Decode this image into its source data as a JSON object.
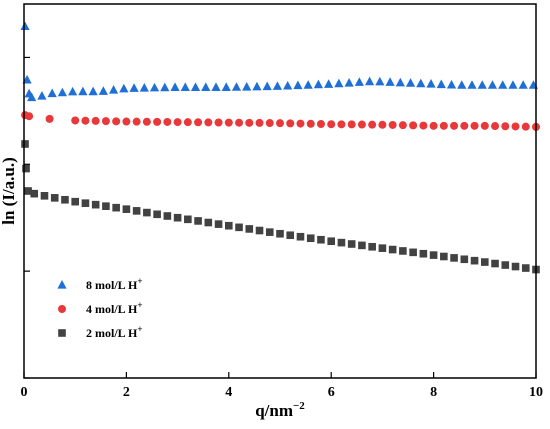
{
  "chart_data": {
    "type": "scatter",
    "title": "",
    "xlabel": "q/nm",
    "xlabel_sup": "−2",
    "ylabel": "ln (I/a.u.)",
    "xlim": [
      0,
      10
    ],
    "ylim": [
      0,
      7
    ],
    "xticks": [
      0,
      2,
      4,
      6,
      8,
      10
    ],
    "yticks": [
      0,
      2,
      4,
      6
    ],
    "show_y_tick_labels": false,
    "grid": false,
    "legend_position": "lower-left",
    "series": [
      {
        "name": "8 mol/L H",
        "name_sup": "+",
        "color": "#1f6fd6",
        "marker": "triangle",
        "points": [
          [
            0.02,
            6.58
          ],
          [
            0.06,
            5.58
          ],
          [
            0.1,
            5.32
          ],
          [
            0.15,
            5.25
          ],
          [
            0.25,
            5.25
          ],
          [
            0.5,
            5.32
          ],
          [
            1.0,
            5.36
          ],
          [
            1.5,
            5.36
          ],
          [
            2.0,
            5.42
          ],
          [
            3.0,
            5.44
          ],
          [
            4.0,
            5.44
          ],
          [
            5.0,
            5.46
          ],
          [
            6.0,
            5.5
          ],
          [
            6.8,
            5.55
          ],
          [
            7.5,
            5.52
          ],
          [
            8.5,
            5.48
          ],
          [
            10.0,
            5.48
          ]
        ]
      },
      {
        "name": "4 mol/L H",
        "name_sup": "+",
        "color": "#e8383a",
        "marker": "circle",
        "points": [
          [
            0.02,
            4.92
          ],
          [
            0.1,
            4.9
          ],
          [
            0.5,
            4.85
          ],
          [
            1.0,
            4.82
          ],
          [
            2.0,
            4.8
          ],
          [
            3.0,
            4.79
          ],
          [
            4.0,
            4.78
          ],
          [
            5.0,
            4.77
          ],
          [
            6.0,
            4.75
          ],
          [
            7.0,
            4.74
          ],
          [
            8.0,
            4.72
          ],
          [
            9.0,
            4.72
          ],
          [
            10.0,
            4.7
          ]
        ]
      },
      {
        "name": "2 mol/L H",
        "name_sup": "+",
        "color": "#424242",
        "marker": "square",
        "points": [
          [
            0.02,
            4.38
          ],
          [
            0.04,
            3.92
          ],
          [
            0.08,
            3.5
          ],
          [
            0.2,
            3.45
          ],
          [
            0.5,
            3.39
          ],
          [
            1.0,
            3.3
          ],
          [
            2.0,
            3.16
          ],
          [
            3.0,
            3.0
          ],
          [
            4.0,
            2.85
          ],
          [
            5.0,
            2.7
          ],
          [
            6.0,
            2.56
          ],
          [
            7.0,
            2.43
          ],
          [
            8.0,
            2.3
          ],
          [
            9.0,
            2.17
          ],
          [
            10.0,
            2.03
          ]
        ]
      }
    ]
  }
}
